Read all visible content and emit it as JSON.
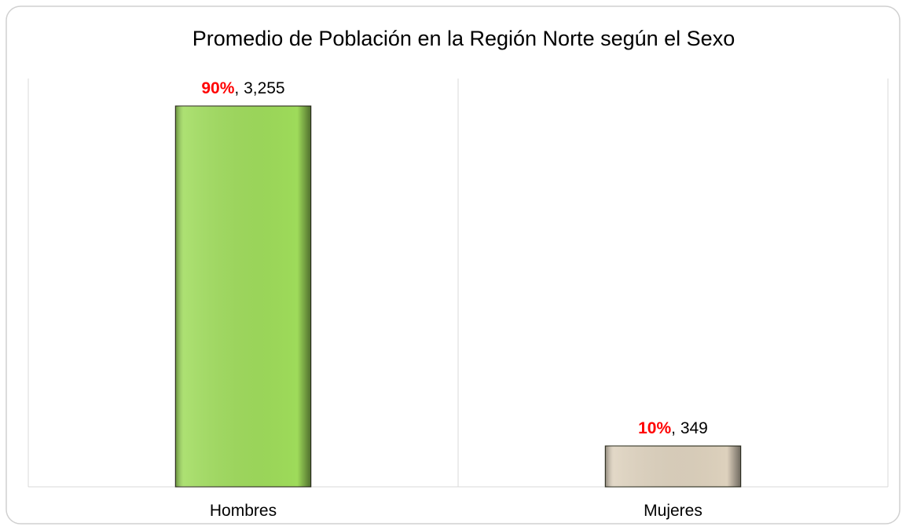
{
  "chart_data": {
    "type": "bar",
    "title": "Promedio de Población en la Región Norte según el Sexo",
    "categories": [
      "Hombres",
      "Mujeres"
    ],
    "values": [
      3255,
      349
    ],
    "value_labels": [
      "3,255",
      "349"
    ],
    "percent_labels": [
      "90%",
      "10%"
    ],
    "label_separator": ", ",
    "percent_color": "#ff0000",
    "colors": [
      "#9edb5a",
      "#ddd1bd"
    ],
    "ylim": [
      0,
      3490
    ],
    "grid": true
  }
}
